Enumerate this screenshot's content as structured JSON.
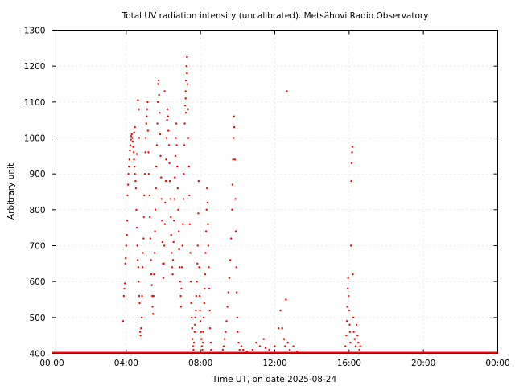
{
  "chart_data": {
    "type": "scatter",
    "title": "Total UV radiation intensity (uncalibrated). Metsähovi Radio Observatory",
    "xlabel": "Time UT, on date 2025-08-24",
    "ylabel": "Arbitrary unit",
    "x_unit": "hours UT",
    "xlim": [
      0,
      24
    ],
    "ylim": [
      400,
      1300
    ],
    "x_ticks": [
      {
        "value": 0,
        "label": "00:00"
      },
      {
        "value": 4,
        "label": "04:00"
      },
      {
        "value": 8,
        "label": "08:00"
      },
      {
        "value": 12,
        "label": "12:00"
      },
      {
        "value": 16,
        "label": "16:00"
      },
      {
        "value": 20,
        "label": "20:00"
      },
      {
        "value": 24,
        "label": "00:00"
      }
    ],
    "y_ticks": [
      400,
      500,
      600,
      700,
      800,
      900,
      1000,
      1100,
      1200,
      1300
    ],
    "grid": true,
    "series_color": "#ff0000",
    "baseline": {
      "x_start": 0,
      "x_end": 24,
      "y": 400
    },
    "points": [
      [
        3.83,
        490
      ],
      [
        3.87,
        560
      ],
      [
        3.9,
        580
      ],
      [
        3.93,
        595
      ],
      [
        3.95,
        650
      ],
      [
        3.97,
        665
      ],
      [
        4.0,
        700
      ],
      [
        4.03,
        730
      ],
      [
        4.05,
        770
      ],
      [
        4.07,
        840
      ],
      [
        4.1,
        870
      ],
      [
        4.12,
        900
      ],
      [
        4.15,
        920
      ],
      [
        4.17,
        940
      ],
      [
        4.2,
        965
      ],
      [
        4.22,
        980
      ],
      [
        4.25,
        995
      ],
      [
        4.27,
        1005
      ],
      [
        4.3,
        1010
      ],
      [
        4.33,
        1000
      ],
      [
        4.35,
        990
      ],
      [
        4.38,
        975
      ],
      [
        4.4,
        960
      ],
      [
        4.42,
        940
      ],
      [
        4.45,
        920
      ],
      [
        4.47,
        900
      ],
      [
        4.5,
        880
      ],
      [
        4.52,
        860
      ],
      [
        4.55,
        800
      ],
      [
        4.57,
        750
      ],
      [
        4.6,
        700
      ],
      [
        4.62,
        660
      ],
      [
        4.65,
        640
      ],
      [
        4.67,
        600
      ],
      [
        4.7,
        560
      ],
      [
        4.72,
        540
      ],
      [
        4.75,
        460
      ],
      [
        4.77,
        450
      ],
      [
        4.8,
        470
      ],
      [
        4.83,
        500
      ],
      [
        4.85,
        560
      ],
      [
        4.88,
        640
      ],
      [
        4.9,
        680
      ],
      [
        4.93,
        720
      ],
      [
        4.95,
        780
      ],
      [
        4.97,
        840
      ],
      [
        5.0,
        900
      ],
      [
        5.03,
        960
      ],
      [
        5.05,
        1000
      ],
      [
        5.08,
        1040
      ],
      [
        4.47,
        1030
      ],
      [
        4.43,
        1015
      ],
      [
        4.63,
        1105
      ],
      [
        4.68,
        1080
      ],
      [
        4.57,
        955
      ],
      [
        4.7,
        1000
      ],
      [
        5.1,
        1060
      ],
      [
        5.13,
        1080
      ],
      [
        5.15,
        1100
      ],
      [
        5.17,
        1020
      ],
      [
        5.2,
        960
      ],
      [
        5.22,
        900
      ],
      [
        5.25,
        840
      ],
      [
        5.27,
        780
      ],
      [
        5.3,
        720
      ],
      [
        5.33,
        660
      ],
      [
        5.35,
        620
      ],
      [
        5.38,
        590
      ],
      [
        5.4,
        560
      ],
      [
        5.42,
        530
      ],
      [
        5.45,
        510
      ],
      [
        5.47,
        560
      ],
      [
        5.5,
        620
      ],
      [
        5.52,
        680
      ],
      [
        5.55,
        740
      ],
      [
        5.57,
        800
      ],
      [
        5.6,
        860
      ],
      [
        5.62,
        920
      ],
      [
        5.65,
        980
      ],
      [
        5.68,
        1040
      ],
      [
        5.7,
        1100
      ],
      [
        5.72,
        1150
      ],
      [
        5.75,
        1160
      ],
      [
        5.77,
        1120
      ],
      [
        5.8,
        1070
      ],
      [
        5.83,
        1010
      ],
      [
        5.85,
        950
      ],
      [
        5.88,
        890
      ],
      [
        5.9,
        830
      ],
      [
        5.93,
        770
      ],
      [
        5.95,
        710
      ],
      [
        5.97,
        650
      ],
      [
        6.0,
        610
      ],
      [
        6.03,
        650
      ],
      [
        6.05,
        700
      ],
      [
        6.08,
        760
      ],
      [
        6.1,
        820
      ],
      [
        6.13,
        880
      ],
      [
        6.15,
        940
      ],
      [
        6.17,
        1000
      ],
      [
        6.2,
        1050
      ],
      [
        6.22,
        1080
      ],
      [
        6.25,
        1060
      ],
      [
        6.27,
        1020
      ],
      [
        6.3,
        980
      ],
      [
        6.33,
        930
      ],
      [
        6.35,
        880
      ],
      [
        6.38,
        830
      ],
      [
        6.4,
        780
      ],
      [
        6.42,
        730
      ],
      [
        6.45,
        680
      ],
      [
        6.47,
        640
      ],
      [
        6.5,
        620
      ],
      [
        6.52,
        660
      ],
      [
        6.55,
        710
      ],
      [
        6.57,
        770
      ],
      [
        6.6,
        830
      ],
      [
        6.62,
        890
      ],
      [
        6.65,
        950
      ],
      [
        6.67,
        1000
      ],
      [
        6.7,
        1040
      ],
      [
        6.72,
        980
      ],
      [
        6.75,
        920
      ],
      [
        6.77,
        860
      ],
      [
        6.8,
        800
      ],
      [
        6.83,
        740
      ],
      [
        6.85,
        690
      ],
      [
        6.88,
        640
      ],
      [
        6.9,
        600
      ],
      [
        6.93,
        560
      ],
      [
        6.95,
        530
      ],
      [
        6.97,
        580
      ],
      [
        7.0,
        640
      ],
      [
        7.03,
        700
      ],
      [
        7.05,
        760
      ],
      [
        7.08,
        830
      ],
      [
        7.1,
        900
      ],
      [
        7.13,
        980
      ],
      [
        7.15,
        1040
      ],
      [
        7.17,
        1090
      ],
      [
        7.2,
        1130
      ],
      [
        7.22,
        1160
      ],
      [
        7.25,
        1200
      ],
      [
        7.27,
        1225
      ],
      [
        7.3,
        1150
      ],
      [
        7.33,
        1080
      ],
      [
        7.35,
        1000
      ],
      [
        7.38,
        920
      ],
      [
        7.4,
        840
      ],
      [
        7.42,
        760
      ],
      [
        7.45,
        680
      ],
      [
        7.47,
        600
      ],
      [
        7.5,
        540
      ],
      [
        7.52,
        500
      ],
      [
        7.55,
        470
      ],
      [
        7.57,
        440
      ],
      [
        7.6,
        420
      ],
      [
        7.62,
        410
      ],
      [
        7.65,
        430
      ],
      [
        7.68,
        460
      ],
      [
        7.7,
        480
      ],
      [
        7.72,
        500
      ],
      [
        7.75,
        520
      ],
      [
        7.77,
        560
      ],
      [
        7.8,
        600
      ],
      [
        7.83,
        650
      ],
      [
        7.85,
        700
      ],
      [
        7.88,
        790
      ],
      [
        7.9,
        880
      ],
      [
        7.93,
        640
      ],
      [
        7.95,
        560
      ],
      [
        7.97,
        520
      ],
      [
        8.0,
        490
      ],
      [
        8.03,
        460
      ],
      [
        8.05,
        440
      ],
      [
        8.08,
        420
      ],
      [
        8.1,
        410
      ],
      [
        8.13,
        430
      ],
      [
        8.15,
        460
      ],
      [
        8.17,
        500
      ],
      [
        8.2,
        540
      ],
      [
        8.22,
        580
      ],
      [
        8.25,
        620
      ],
      [
        8.27,
        680
      ],
      [
        8.3,
        740
      ],
      [
        8.33,
        800
      ],
      [
        8.35,
        860
      ],
      [
        8.38,
        820
      ],
      [
        8.4,
        760
      ],
      [
        8.42,
        700
      ],
      [
        8.45,
        640
      ],
      [
        8.47,
        580
      ],
      [
        8.5,
        520
      ],
      [
        8.52,
        470
      ],
      [
        8.55,
        430
      ],
      [
        8.57,
        410
      ],
      [
        7.27,
        1180
      ],
      [
        7.2,
        1110
      ],
      [
        7.22,
        1070
      ],
      [
        6.07,
        1130
      ],
      [
        9.2,
        410
      ],
      [
        9.25,
        420
      ],
      [
        9.3,
        440
      ],
      [
        9.35,
        460
      ],
      [
        9.4,
        490
      ],
      [
        9.45,
        530
      ],
      [
        9.5,
        570
      ],
      [
        9.55,
        610
      ],
      [
        9.6,
        660
      ],
      [
        9.65,
        720
      ],
      [
        9.7,
        800
      ],
      [
        9.72,
        870
      ],
      [
        9.75,
        940
      ],
      [
        9.78,
        1000
      ],
      [
        9.8,
        1060
      ],
      [
        9.82,
        1030
      ],
      [
        9.85,
        940
      ],
      [
        9.88,
        830
      ],
      [
        9.9,
        740
      ],
      [
        9.93,
        640
      ],
      [
        9.95,
        570
      ],
      [
        9.98,
        500
      ],
      [
        10.0,
        460
      ],
      [
        10.05,
        430
      ],
      [
        10.1,
        410
      ],
      [
        10.2,
        420
      ],
      [
        10.3,
        410
      ],
      [
        10.5,
        405
      ],
      [
        10.8,
        410
      ],
      [
        11.0,
        430
      ],
      [
        11.2,
        420
      ],
      [
        11.4,
        440
      ],
      [
        11.5,
        415
      ],
      [
        11.7,
        410
      ],
      [
        12.0,
        420
      ],
      [
        12.2,
        470
      ],
      [
        12.3,
        520
      ],
      [
        12.4,
        470
      ],
      [
        12.5,
        440
      ],
      [
        12.55,
        420
      ],
      [
        12.6,
        550
      ],
      [
        12.65,
        1130
      ],
      [
        12.7,
        430
      ],
      [
        12.8,
        410
      ],
      [
        13.0,
        420
      ],
      [
        13.2,
        405
      ],
      [
        15.8,
        420
      ],
      [
        15.85,
        450
      ],
      [
        15.88,
        490
      ],
      [
        15.9,
        530
      ],
      [
        15.92,
        580
      ],
      [
        15.95,
        610
      ],
      [
        15.97,
        560
      ],
      [
        16.0,
        520
      ],
      [
        16.03,
        480
      ],
      [
        16.05,
        460
      ],
      [
        16.07,
        430
      ],
      [
        16.1,
        700
      ],
      [
        16.12,
        880
      ],
      [
        16.14,
        930
      ],
      [
        16.16,
        960
      ],
      [
        16.18,
        975
      ],
      [
        16.2,
        620
      ],
      [
        16.23,
        500
      ],
      [
        16.25,
        460
      ],
      [
        16.3,
        440
      ],
      [
        16.35,
        420
      ],
      [
        16.4,
        480
      ],
      [
        16.45,
        450
      ],
      [
        16.5,
        430
      ],
      [
        16.55,
        410
      ],
      [
        16.6,
        420
      ]
    ]
  }
}
